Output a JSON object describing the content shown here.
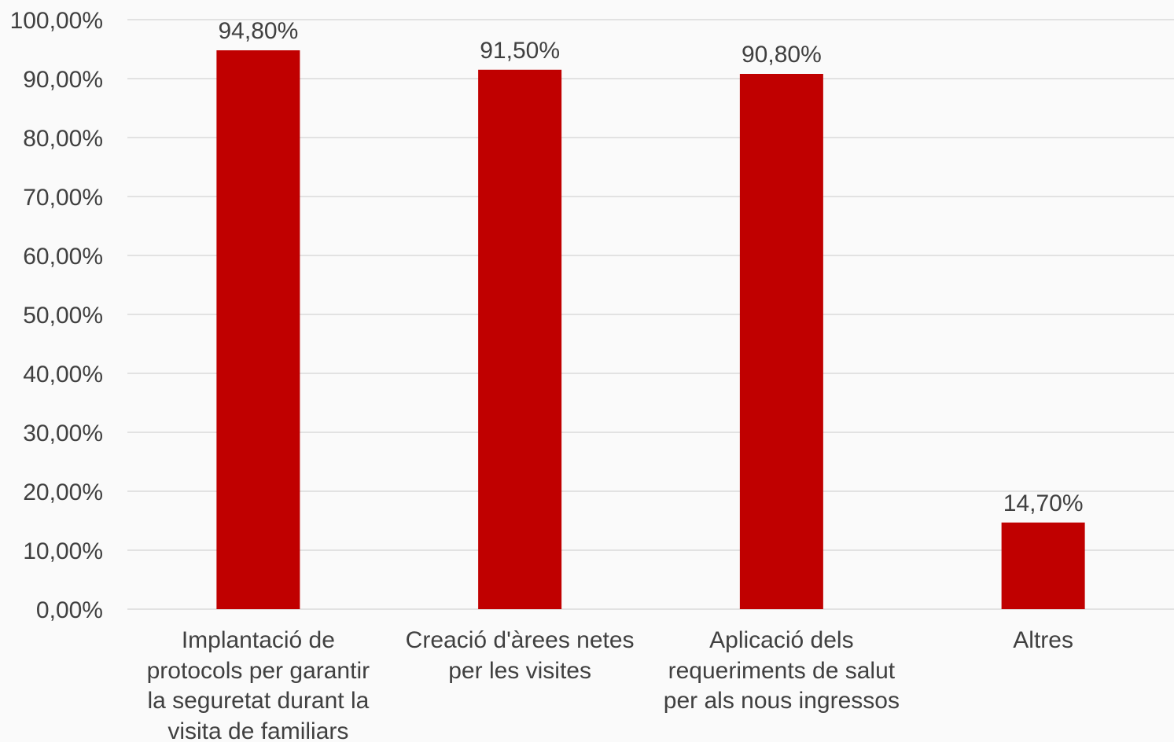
{
  "chart_data": {
    "type": "bar",
    "categories": [
      "Implantació de\nprotocols per garantir\nla seguretat durant la\nvisita de familiars",
      "Creació d'àrees netes\nper les visites",
      "Aplicació dels\nrequeriments de salut\nper als nous ingressos",
      "Altres"
    ],
    "values": [
      94.8,
      91.5,
      90.8,
      14.7
    ],
    "value_labels": [
      "94,80%",
      "91,50%",
      "90,80%",
      "14,70%"
    ],
    "y_ticks": [
      "0,00%",
      "10,00%",
      "20,00%",
      "30,00%",
      "40,00%",
      "50,00%",
      "60,00%",
      "70,00%",
      "80,00%",
      "90,00%",
      "100,00%"
    ],
    "ylim": [
      0,
      100
    ],
    "grid": true,
    "legend": "none",
    "colors": {
      "bar": "#c00000",
      "grid": "#d9d9d9",
      "text": "#404040"
    }
  }
}
